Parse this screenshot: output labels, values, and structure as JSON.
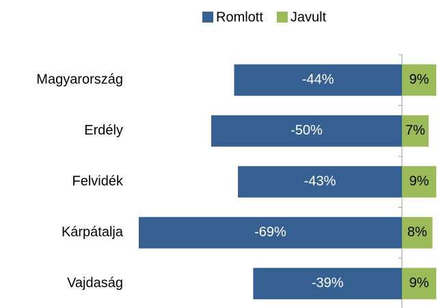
{
  "chart_data": {
    "type": "diverging-bar",
    "categories": [
      "Magyarország",
      "Erdély",
      "Felvidék",
      "Kárpátalja",
      "Vajdaság"
    ],
    "series": [
      {
        "name": "Romlott",
        "color": "#376092",
        "values": [
          -44,
          -50,
          -43,
          -69,
          -39
        ],
        "value_labels": [
          "-44%",
          "-50%",
          "-43%",
          "-69%",
          "-39%"
        ]
      },
      {
        "name": "Javult",
        "color": "#9bbb59",
        "values": [
          9,
          7,
          9,
          8,
          9
        ],
        "value_labels": [
          "9%",
          "7%",
          "9%",
          "8%",
          "9%"
        ]
      }
    ],
    "legend": "top"
  }
}
